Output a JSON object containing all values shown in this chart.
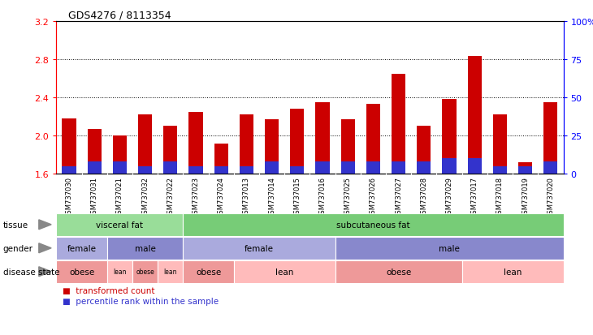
{
  "title": "GDS4276 / 8113354",
  "samples": [
    "GSM737030",
    "GSM737031",
    "GSM737021",
    "GSM737032",
    "GSM737022",
    "GSM737023",
    "GSM737024",
    "GSM737013",
    "GSM737014",
    "GSM737015",
    "GSM737016",
    "GSM737025",
    "GSM737026",
    "GSM737027",
    "GSM737028",
    "GSM737029",
    "GSM737017",
    "GSM737018",
    "GSM737019",
    "GSM737020"
  ],
  "transformed_count": [
    2.18,
    2.07,
    2.0,
    2.22,
    2.1,
    2.25,
    1.92,
    2.22,
    2.17,
    2.28,
    2.35,
    2.17,
    2.33,
    2.65,
    2.1,
    2.38,
    2.83,
    2.22,
    1.72,
    2.35
  ],
  "percentile_rank": [
    5,
    8,
    8,
    5,
    8,
    5,
    5,
    5,
    8,
    5,
    8,
    8,
    8,
    8,
    8,
    10,
    10,
    5,
    5,
    8
  ],
  "ylim_left": [
    1.6,
    3.2
  ],
  "ylim_right": [
    0,
    100
  ],
  "yticks_left": [
    1.6,
    2.0,
    2.4,
    2.8,
    3.2
  ],
  "yticks_right": [
    0,
    25,
    50,
    75,
    100
  ],
  "ytick_labels_right": [
    "0",
    "25",
    "50",
    "75",
    "100%"
  ],
  "bar_color_red": "#cc0000",
  "bar_color_blue": "#3333cc",
  "tissue_groups": [
    {
      "label": "visceral fat",
      "start": 0,
      "end": 5,
      "color": "#99dd99"
    },
    {
      "label": "subcutaneous fat",
      "start": 5,
      "end": 20,
      "color": "#77cc77"
    }
  ],
  "gender_groups": [
    {
      "label": "female",
      "start": 0,
      "end": 2,
      "color": "#aaaadd"
    },
    {
      "label": "male",
      "start": 2,
      "end": 5,
      "color": "#8888cc"
    },
    {
      "label": "female",
      "start": 5,
      "end": 11,
      "color": "#aaaadd"
    },
    {
      "label": "male",
      "start": 11,
      "end": 20,
      "color": "#8888cc"
    }
  ],
  "disease_groups": [
    {
      "label": "obese",
      "start": 0,
      "end": 2,
      "color": "#ee9999"
    },
    {
      "label": "lean",
      "start": 2,
      "end": 3,
      "color": "#ffbbbb"
    },
    {
      "label": "obese",
      "start": 3,
      "end": 4,
      "color": "#ee9999"
    },
    {
      "label": "lean",
      "start": 4,
      "end": 5,
      "color": "#ffbbbb"
    },
    {
      "label": "obese",
      "start": 5,
      "end": 7,
      "color": "#ee9999"
    },
    {
      "label": "lean",
      "start": 7,
      "end": 11,
      "color": "#ffbbbb"
    },
    {
      "label": "obese",
      "start": 11,
      "end": 16,
      "color": "#ee9999"
    },
    {
      "label": "lean",
      "start": 16,
      "end": 20,
      "color": "#ffbbbb"
    }
  ],
  "row_labels": [
    "tissue",
    "gender",
    "disease state"
  ],
  "legend_items": [
    {
      "label": "transformed count",
      "color": "#cc0000"
    },
    {
      "label": "percentile rank within the sample",
      "color": "#3333cc"
    }
  ],
  "bg_color": "#cccccc"
}
